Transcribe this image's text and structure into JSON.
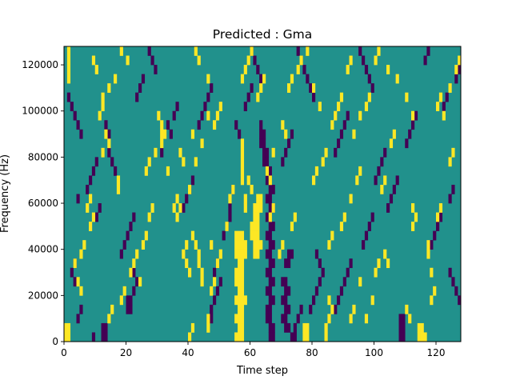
{
  "chart_data": {
    "type": "heatmap",
    "title": "Predicted : Gma",
    "xlabel": "Time step",
    "ylabel": "Frequency (Hz)",
    "xlim": [
      0,
      128
    ],
    "ylim": [
      0,
      128000
    ],
    "x_ticks": [
      0,
      20,
      40,
      60,
      80,
      100,
      120
    ],
    "y_ticks": [
      0,
      20000,
      40000,
      60000,
      80000,
      100000,
      120000
    ],
    "x_tick_labels": [
      "0",
      "20",
      "40",
      "60",
      "80",
      "100",
      "120"
    ],
    "y_tick_labels": [
      "0",
      "20000",
      "40000",
      "60000",
      "80000",
      "100000",
      "120000"
    ],
    "grid": false,
    "colormap": "viridis",
    "cell_size": {
      "time_steps": 1,
      "frequency_hz": 4000
    },
    "levels": {
      "low": "#440154",
      "mid": "#21918c",
      "high": "#fde725"
    },
    "background_level": "mid",
    "cells_high": [
      [
        0,
        0
      ],
      [
        1,
        0
      ],
      [
        0,
        1
      ],
      [
        1,
        1
      ],
      [
        1,
        28
      ],
      [
        1,
        29
      ],
      [
        1,
        30
      ],
      [
        1,
        31
      ],
      [
        55,
        0
      ],
      [
        56,
        0
      ],
      [
        57,
        0
      ],
      [
        56,
        1
      ],
      [
        57,
        1
      ],
      [
        55,
        2
      ],
      [
        56,
        2
      ],
      [
        57,
        2
      ],
      [
        56,
        3
      ],
      [
        57,
        3
      ],
      [
        55,
        4
      ],
      [
        56,
        4
      ],
      [
        57,
        4
      ],
      [
        58,
        4
      ],
      [
        56,
        5
      ],
      [
        57,
        5
      ],
      [
        55,
        6
      ],
      [
        56,
        6
      ],
      [
        57,
        6
      ],
      [
        55,
        7
      ],
      [
        56,
        7
      ],
      [
        57,
        7
      ],
      [
        56,
        8
      ],
      [
        57,
        8
      ],
      [
        55,
        9
      ],
      [
        56,
        9
      ],
      [
        57,
        9
      ],
      [
        58,
        9
      ],
      [
        55,
        10
      ],
      [
        56,
        10
      ],
      [
        57,
        10
      ],
      [
        58,
        10
      ],
      [
        55,
        11
      ],
      [
        56,
        11
      ],
      [
        57,
        11
      ],
      [
        61,
        9
      ],
      [
        62,
        9
      ],
      [
        61,
        10
      ],
      [
        62,
        10
      ],
      [
        63,
        10
      ],
      [
        60,
        11
      ],
      [
        61,
        11
      ],
      [
        62,
        11
      ],
      [
        60,
        12
      ],
      [
        61,
        12
      ],
      [
        62,
        12
      ],
      [
        61,
        13
      ],
      [
        62,
        13
      ],
      [
        61,
        14
      ],
      [
        62,
        14
      ],
      [
        63,
        14
      ],
      [
        62,
        15
      ],
      [
        63,
        15
      ],
      [
        57,
        17
      ],
      [
        57,
        18
      ],
      [
        57,
        19
      ],
      [
        57,
        20
      ],
      [
        57,
        21
      ],
      [
        58,
        14
      ],
      [
        58,
        15
      ],
      [
        60,
        16
      ],
      [
        59,
        17
      ],
      [
        46,
        1
      ],
      [
        46,
        2
      ],
      [
        47,
        5
      ],
      [
        48,
        6
      ],
      [
        49,
        8
      ],
      [
        50,
        9
      ],
      [
        47,
        10
      ],
      [
        52,
        12
      ],
      [
        44,
        6
      ],
      [
        44,
        7
      ],
      [
        43,
        8
      ],
      [
        43,
        9
      ],
      [
        42,
        10
      ],
      [
        41,
        11
      ],
      [
        40,
        7
      ],
      [
        41,
        1
      ],
      [
        40,
        0
      ],
      [
        39,
        8
      ],
      [
        38,
        9
      ],
      [
        39,
        10
      ],
      [
        36,
        13
      ],
      [
        37,
        14
      ],
      [
        40,
        16
      ],
      [
        42,
        19
      ],
      [
        41,
        22
      ],
      [
        44,
        21
      ],
      [
        46,
        24
      ],
      [
        48,
        23
      ],
      [
        49,
        24
      ],
      [
        50,
        25
      ],
      [
        77,
        0
      ],
      [
        78,
        0
      ],
      [
        77,
        1
      ],
      [
        78,
        1
      ],
      [
        84,
        0
      ],
      [
        84,
        1
      ],
      [
        85,
        2
      ],
      [
        86,
        3
      ],
      [
        85,
        4
      ],
      [
        92,
        2
      ],
      [
        93,
        3
      ],
      [
        95,
        6
      ],
      [
        97,
        2
      ],
      [
        99,
        4
      ],
      [
        100,
        7
      ],
      [
        101,
        8
      ],
      [
        114,
        0
      ],
      [
        115,
        0
      ],
      [
        116,
        0
      ],
      [
        114,
        1
      ],
      [
        115,
        1
      ],
      [
        110,
        3
      ],
      [
        111,
        2
      ],
      [
        118,
        4
      ],
      [
        119,
        5
      ],
      [
        118,
        7
      ],
      [
        117,
        9
      ],
      [
        117,
        10
      ],
      [
        89,
        12
      ],
      [
        90,
        13
      ],
      [
        92,
        15
      ],
      [
        94,
        17
      ],
      [
        95,
        18
      ],
      [
        102,
        16
      ],
      [
        103,
        17
      ],
      [
        93,
        22
      ],
      [
        95,
        24
      ],
      [
        97,
        25
      ],
      [
        98,
        26
      ],
      [
        91,
        29
      ],
      [
        92,
        30
      ],
      [
        26,
        18
      ],
      [
        27,
        19
      ],
      [
        29,
        20
      ],
      [
        31,
        21
      ],
      [
        32,
        22
      ],
      [
        33,
        18
      ],
      [
        35,
        14
      ],
      [
        36,
        15
      ],
      [
        17,
        16
      ],
      [
        17,
        17
      ],
      [
        14,
        21
      ],
      [
        12,
        20
      ],
      [
        13,
        22
      ],
      [
        11,
        24
      ],
      [
        12,
        25
      ],
      [
        5,
        5
      ],
      [
        4,
        6
      ],
      [
        3,
        8
      ],
      [
        5,
        9
      ],
      [
        6,
        10
      ],
      [
        8,
        12
      ],
      [
        9,
        13
      ],
      [
        7,
        14
      ],
      [
        8,
        15
      ],
      [
        18,
        4
      ],
      [
        19,
        5
      ],
      [
        21,
        7
      ],
      [
        22,
        8
      ],
      [
        23,
        9
      ],
      [
        25,
        10
      ],
      [
        26,
        11
      ],
      [
        14,
        2
      ],
      [
        15,
        3
      ],
      [
        24,
        6
      ],
      [
        27,
        13
      ],
      [
        28,
        14
      ],
      [
        80,
        17
      ],
      [
        81,
        18
      ],
      [
        83,
        19
      ],
      [
        84,
        20
      ],
      [
        86,
        23
      ],
      [
        87,
        24
      ],
      [
        88,
        25
      ],
      [
        89,
        26
      ],
      [
        112,
        12
      ],
      [
        113,
        13
      ],
      [
        112,
        14
      ],
      [
        105,
        21
      ],
      [
        106,
        22
      ],
      [
        124,
        19
      ],
      [
        125,
        20
      ],
      [
        57,
        28
      ],
      [
        58,
        29
      ],
      [
        59,
        30
      ],
      [
        60,
        31
      ],
      [
        62,
        26
      ],
      [
        63,
        27
      ],
      [
        64,
        28
      ],
      [
        66,
        13
      ],
      [
        67,
        14
      ],
      [
        69,
        9
      ],
      [
        70,
        10
      ],
      [
        73,
        12
      ],
      [
        74,
        13
      ],
      [
        9,
        30
      ],
      [
        10,
        29
      ],
      [
        12,
        26
      ],
      [
        14,
        27
      ],
      [
        16,
        28
      ],
      [
        18,
        31
      ],
      [
        20,
        30
      ],
      [
        31,
        22
      ],
      [
        31,
        23
      ],
      [
        30,
        24
      ],
      [
        42,
        31
      ],
      [
        43,
        30
      ],
      [
        46,
        28
      ],
      [
        72,
        27
      ],
      [
        73,
        28
      ],
      [
        75,
        29
      ],
      [
        76,
        30
      ],
      [
        78,
        31
      ],
      [
        80,
        27
      ],
      [
        82,
        25
      ],
      [
        100,
        30
      ],
      [
        101,
        31
      ],
      [
        104,
        29
      ],
      [
        107,
        28
      ],
      [
        110,
        26
      ],
      [
        112,
        24
      ],
      [
        120,
        25
      ],
      [
        121,
        26
      ],
      [
        122,
        24
      ],
      [
        124,
        27
      ],
      [
        126,
        29
      ],
      [
        127,
        30
      ],
      [
        37,
        20
      ],
      [
        38,
        19
      ],
      [
        53,
        15
      ],
      [
        54,
        16
      ],
      [
        65,
        18
      ],
      [
        66,
        17
      ],
      [
        67,
        20
      ],
      [
        70,
        23
      ],
      [
        71,
        22
      ],
      [
        85,
        10
      ],
      [
        86,
        11
      ],
      [
        103,
        9
      ],
      [
        104,
        8
      ],
      [
        120,
        13
      ],
      [
        121,
        14
      ]
    ],
    "cells_low": [
      [
        66,
        0
      ],
      [
        67,
        0
      ],
      [
        66,
        1
      ],
      [
        67,
        1
      ],
      [
        65,
        2
      ],
      [
        66,
        2
      ],
      [
        65,
        3
      ],
      [
        66,
        3
      ],
      [
        66,
        4
      ],
      [
        67,
        4
      ],
      [
        65,
        5
      ],
      [
        66,
        5
      ],
      [
        66,
        6
      ],
      [
        67,
        6
      ],
      [
        65,
        7
      ],
      [
        66,
        7
      ],
      [
        66,
        8
      ],
      [
        67,
        8
      ],
      [
        65,
        9
      ],
      [
        66,
        9
      ],
      [
        66,
        10
      ],
      [
        67,
        10
      ],
      [
        65,
        11
      ],
      [
        66,
        11
      ],
      [
        66,
        12
      ],
      [
        67,
        12
      ],
      [
        65,
        13
      ],
      [
        66,
        13
      ],
      [
        66,
        14
      ],
      [
        67,
        14
      ],
      [
        65,
        15
      ],
      [
        66,
        15
      ],
      [
        66,
        16
      ],
      [
        67,
        16
      ],
      [
        65,
        17
      ],
      [
        66,
        17
      ],
      [
        65,
        18
      ],
      [
        66,
        18
      ],
      [
        64,
        19
      ],
      [
        65,
        19
      ],
      [
        64,
        20
      ],
      [
        65,
        20
      ],
      [
        63,
        21
      ],
      [
        64,
        21
      ],
      [
        63,
        22
      ],
      [
        64,
        22
      ],
      [
        63,
        23
      ],
      [
        71,
        1
      ],
      [
        72,
        1
      ],
      [
        70,
        2
      ],
      [
        71,
        2
      ],
      [
        71,
        3
      ],
      [
        72,
        3
      ],
      [
        70,
        4
      ],
      [
        71,
        4
      ],
      [
        71,
        5
      ],
      [
        72,
        5
      ],
      [
        70,
        6
      ],
      [
        71,
        6
      ],
      [
        71,
        8
      ],
      [
        72,
        8
      ],
      [
        72,
        9
      ],
      [
        73,
        9
      ],
      [
        73,
        0
      ],
      [
        74,
        0
      ],
      [
        74,
        1
      ],
      [
        75,
        2
      ],
      [
        76,
        3
      ],
      [
        108,
        0
      ],
      [
        109,
        0
      ],
      [
        108,
        1
      ],
      [
        109,
        1
      ],
      [
        108,
        2
      ],
      [
        109,
        2
      ],
      [
        20,
        3
      ],
      [
        21,
        3
      ],
      [
        20,
        4
      ],
      [
        21,
        4
      ],
      [
        22,
        5
      ],
      [
        23,
        6
      ],
      [
        22,
        7
      ],
      [
        12,
        0
      ],
      [
        13,
        0
      ],
      [
        12,
        1
      ],
      [
        13,
        1
      ],
      [
        9,
        0
      ],
      [
        4,
        2
      ],
      [
        5,
        3
      ],
      [
        3,
        6
      ],
      [
        2,
        7
      ],
      [
        3,
        8
      ],
      [
        10,
        13
      ],
      [
        11,
        14
      ],
      [
        4,
        15
      ],
      [
        7,
        16
      ],
      [
        8,
        17
      ],
      [
        9,
        18
      ],
      [
        10,
        19
      ],
      [
        16,
        18
      ],
      [
        15,
        19
      ],
      [
        14,
        20
      ],
      [
        14,
        22
      ],
      [
        13,
        23
      ],
      [
        33,
        23
      ],
      [
        35,
        24
      ],
      [
        36,
        25
      ],
      [
        34,
        22
      ],
      [
        31,
        20
      ],
      [
        47,
        2
      ],
      [
        47,
        3
      ],
      [
        48,
        4
      ],
      [
        49,
        5
      ],
      [
        50,
        6
      ],
      [
        48,
        7
      ],
      [
        49,
        8
      ],
      [
        51,
        11
      ],
      [
        52,
        12
      ],
      [
        53,
        13
      ],
      [
        53,
        14
      ],
      [
        54,
        16
      ],
      [
        79,
        3
      ],
      [
        80,
        4
      ],
      [
        81,
        5
      ],
      [
        82,
        6
      ],
      [
        83,
        7
      ],
      [
        82,
        8
      ],
      [
        81,
        9
      ],
      [
        87,
        3
      ],
      [
        88,
        4
      ],
      [
        89,
        5
      ],
      [
        90,
        6
      ],
      [
        91,
        7
      ],
      [
        92,
        8
      ],
      [
        96,
        10
      ],
      [
        97,
        11
      ],
      [
        98,
        12
      ],
      [
        99,
        13
      ],
      [
        104,
        14
      ],
      [
        105,
        15
      ],
      [
        106,
        16
      ],
      [
        107,
        17
      ],
      [
        110,
        21
      ],
      [
        111,
        22
      ],
      [
        112,
        23
      ],
      [
        113,
        24
      ],
      [
        118,
        10
      ],
      [
        119,
        11
      ],
      [
        120,
        12
      ],
      [
        121,
        13
      ],
      [
        124,
        15
      ],
      [
        125,
        16
      ],
      [
        126,
        28
      ],
      [
        127,
        29
      ],
      [
        123,
        26
      ],
      [
        122,
        25
      ],
      [
        116,
        30
      ],
      [
        117,
        31
      ],
      [
        99,
        27
      ],
      [
        98,
        28
      ],
      [
        97,
        29
      ],
      [
        96,
        30
      ],
      [
        95,
        31
      ],
      [
        80,
        26
      ],
      [
        79,
        27
      ],
      [
        78,
        28
      ],
      [
        77,
        29
      ],
      [
        76,
        30
      ],
      [
        75,
        31
      ],
      [
        63,
        28
      ],
      [
        62,
        29
      ],
      [
        61,
        30
      ],
      [
        60,
        31
      ],
      [
        47,
        27
      ],
      [
        46,
        26
      ],
      [
        45,
        25
      ],
      [
        44,
        24
      ],
      [
        43,
        23
      ],
      [
        29,
        29
      ],
      [
        28,
        30
      ],
      [
        27,
        31
      ],
      [
        25,
        28
      ],
      [
        24,
        27
      ],
      [
        23,
        26
      ],
      [
        5,
        22
      ],
      [
        4,
        23
      ],
      [
        3,
        24
      ],
      [
        2,
        25
      ],
      [
        1,
        26
      ],
      [
        127,
        4
      ],
      [
        126,
        5
      ],
      [
        125,
        6
      ],
      [
        124,
        7
      ],
      [
        87,
        20
      ],
      [
        88,
        21
      ],
      [
        89,
        22
      ],
      [
        90,
        23
      ],
      [
        91,
        24
      ],
      [
        58,
        25
      ],
      [
        59,
        26
      ],
      [
        60,
        27
      ],
      [
        56,
        22
      ],
      [
        55,
        23
      ],
      [
        38,
        14
      ],
      [
        39,
        15
      ],
      [
        40,
        16
      ],
      [
        41,
        17
      ],
      [
        100,
        17
      ],
      [
        101,
        18
      ],
      [
        102,
        19
      ],
      [
        103,
        20
      ],
      [
        70,
        19
      ],
      [
        71,
        20
      ],
      [
        72,
        21
      ],
      [
        73,
        22
      ],
      [
        18,
        9
      ],
      [
        19,
        10
      ],
      [
        20,
        11
      ],
      [
        21,
        12
      ],
      [
        22,
        13
      ]
    ]
  }
}
